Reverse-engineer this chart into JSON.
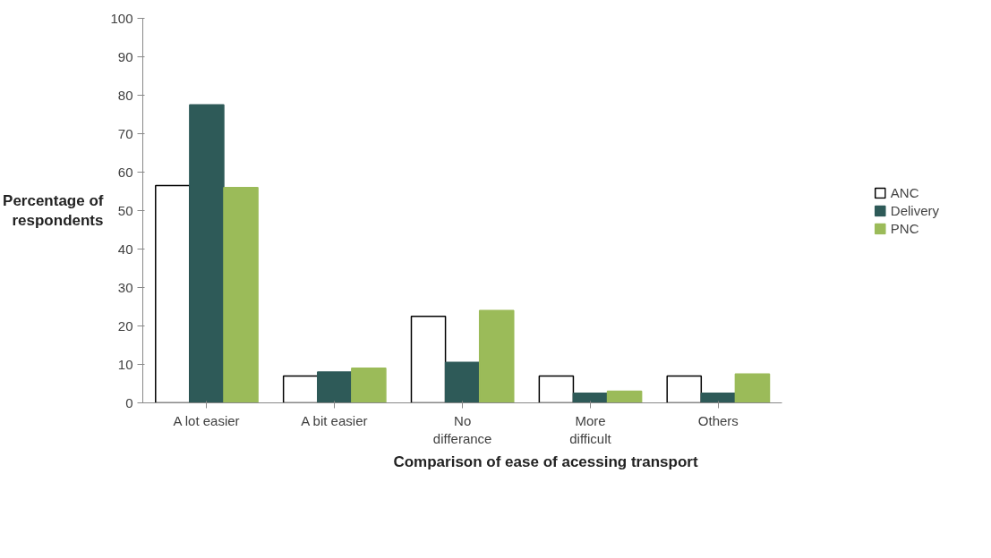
{
  "chart_data": {
    "type": "bar",
    "xlabel": "Comparison of ease of acessing transport",
    "ylabel": "Percentage of respondents",
    "categories": [
      "A lot easier",
      "A bit easier",
      "No differance",
      "More difficult",
      "Others"
    ],
    "series": [
      {
        "name": "ANC",
        "color": "#ffffff",
        "values": [
          56.5,
          7,
          22.5,
          7,
          7
        ]
      },
      {
        "name": "Delivery",
        "color": "#2e5a58",
        "values": [
          77.5,
          8,
          10.5,
          2.5,
          2.5
        ]
      },
      {
        "name": "PNC",
        "color": "#9bbb59",
        "values": [
          56,
          9,
          24,
          3,
          7.5
        ]
      }
    ],
    "ylim": [
      0,
      100
    ],
    "yticks": [
      0,
      10,
      20,
      30,
      40,
      50,
      60,
      70,
      80,
      90,
      100
    ],
    "grid": false,
    "legend": "right"
  }
}
